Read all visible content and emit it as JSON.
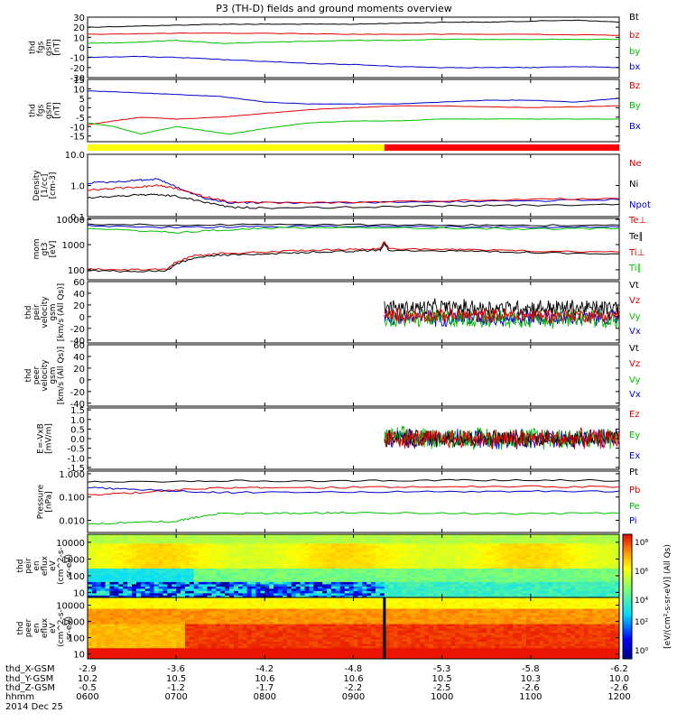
{
  "chart_data": {
    "type": "line",
    "title": "P3 (TH-D) fields and ground moments overview",
    "time": {
      "hours": [
        6,
        7,
        8,
        9,
        10,
        11,
        12
      ],
      "ticks": [
        "0600",
        "0700",
        "0800",
        "0900",
        "1000",
        "1100",
        "1200"
      ],
      "orbit_labels": [
        "thd_X-GSM",
        "thd_Y-GSM",
        "thd_Z-GSM",
        "hhmm",
        "2014 Dec 25"
      ],
      "x_gsm": [
        "-2.9",
        "-3.6",
        "-4.2",
        "-4.8",
        "-5.3",
        "-5.8",
        "-6.2"
      ],
      "y_gsm": [
        "10.2",
        "10.5",
        "10.6",
        "10.6",
        "10.5",
        "10.3",
        "10.0"
      ],
      "z_gsm": [
        "-0.5",
        "-1.2",
        "-1.7",
        "-2.2",
        "-2.5",
        "-2.6",
        "-2.6"
      ]
    },
    "mode_bar": {
      "switch_hour": 9.35,
      "colors": [
        "#ffff00",
        "#ff0000"
      ]
    },
    "panels": [
      {
        "id": "fgs",
        "ylabel": [
          "thd",
          "fgs",
          "gsm",
          "[nT]"
        ],
        "scale": "linear",
        "ylim": [
          -30,
          30
        ],
        "ticks": [
          "30",
          "20",
          "10",
          "0",
          "-10",
          "-20",
          "-30"
        ],
        "tick_values": [
          30,
          20,
          10,
          0,
          -10,
          -20,
          -30
        ],
        "legend": [
          {
            "name": "Bt",
            "color": "#000000"
          },
          {
            "name": "bz",
            "color": "#e00000"
          },
          {
            "name": "by",
            "color": "#00c000"
          },
          {
            "name": "bx",
            "color": "#0000cc"
          }
        ],
        "series": [
          {
            "color": "#000000",
            "x": [
              6,
              6.5,
              7,
              7.5,
              8,
              8.5,
              9,
              9.5,
              10,
              10.5,
              11,
              11.5,
              12
            ],
            "y": [
              20,
              21,
              22,
              23,
              23,
              23,
              23,
              24,
              25,
              25,
              26,
              27,
              25
            ]
          },
          {
            "color": "#e00000",
            "x": [
              6,
              7,
              8,
              9,
              10,
              11,
              12
            ],
            "y": [
              13,
              14,
              14,
              13,
              13,
              13,
              12
            ]
          },
          {
            "color": "#00c000",
            "x": [
              6,
              6.5,
              7,
              7.5,
              8,
              8.5,
              9,
              9.5,
              10,
              11,
              12
            ],
            "y": [
              4,
              5,
              7,
              4,
              5,
              6,
              7,
              7,
              8,
              8,
              8
            ]
          },
          {
            "color": "#0000cc",
            "x": [
              6,
              6.5,
              7,
              7.5,
              8,
              8.5,
              9,
              9.5,
              10,
              10.5,
              11,
              11.5,
              12
            ],
            "y": [
              -10,
              -9,
              -10,
              -12,
              -14,
              -16,
              -17,
              -19,
              -20,
              -20,
              -20,
              -19,
              -20
            ]
          }
        ]
      },
      {
        "id": "fgs_gsm",
        "ylabel": [
          "thd",
          "fgs",
          "gsm",
          "[nT]"
        ],
        "scale": "linear",
        "ylim": [
          -18,
          15
        ],
        "ticks": [
          "15",
          "10",
          "5",
          "0",
          "-5",
          "-10",
          "-15"
        ],
        "tick_values": [
          15,
          10,
          5,
          0,
          -5,
          -10,
          -15
        ],
        "legend": [
          {
            "name": "Bz",
            "color": "#e00000"
          },
          {
            "name": "By",
            "color": "#00c000"
          },
          {
            "name": "Bx",
            "color": "#0000cc"
          }
        ],
        "series": [
          {
            "color": "#0000cc",
            "x": [
              6,
              6.5,
              7,
              7.5,
              8,
              8.5,
              9,
              9.5,
              10,
              10.5,
              11,
              11.5,
              12
            ],
            "y": [
              9,
              8,
              7,
              6,
              3,
              2,
              2,
              2,
              3,
              4,
              4,
              3,
              5
            ]
          },
          {
            "color": "#e00000",
            "x": [
              6,
              6.3,
              6.6,
              7,
              7.5,
              8,
              8.5,
              9,
              9.5,
              10,
              11,
              12
            ],
            "y": [
              -9,
              -7,
              -5,
              -6,
              -5,
              -3,
              -1,
              0,
              1,
              1,
              0,
              1
            ]
          },
          {
            "color": "#00c000",
            "x": [
              6,
              6.3,
              6.6,
              7,
              7.3,
              7.6,
              8,
              8.5,
              9,
              9.5,
              10,
              11,
              12
            ],
            "y": [
              -8,
              -10,
              -14,
              -10,
              -12,
              -14,
              -11,
              -8,
              -7,
              -7,
              -6,
              -6,
              -6
            ]
          }
        ]
      },
      {
        "id": "density",
        "ylabel": [
          "Density",
          "[1/cc]",
          "[cm-3]"
        ],
        "scale": "log",
        "ylim": [
          0.1,
          10
        ],
        "ticks": [
          "10.0",
          "1.0",
          "0.1"
        ],
        "tick_values": [
          10,
          1,
          0.1
        ],
        "legend": [
          {
            "name": "Ne",
            "color": "#e00000"
          },
          {
            "name": "Ni",
            "color": "#000000"
          },
          {
            "name": "Npot",
            "color": "#0000cc"
          }
        ],
        "series": [
          {
            "color": "#0000cc",
            "x": [
              6,
              6.3,
              6.6,
              6.8,
              7,
              7.3,
              7.6,
              8,
              9,
              10,
              11,
              12
            ],
            "y": [
              1.2,
              1.3,
              1.5,
              1.6,
              0.9,
              0.4,
              0.28,
              0.28,
              0.28,
              0.3,
              0.32,
              0.35
            ]
          },
          {
            "color": "#e00000",
            "x": [
              6,
              6.3,
              6.6,
              6.8,
              7,
              7.3,
              7.6,
              8,
              9,
              10,
              11,
              12
            ],
            "y": [
              0.7,
              0.8,
              0.9,
              1.0,
              0.8,
              0.45,
              0.3,
              0.28,
              0.28,
              0.32,
              0.36,
              0.38
            ]
          },
          {
            "color": "#000000",
            "x": [
              6,
              6.3,
              6.6,
              6.8,
              7,
              7.3,
              7.6,
              8,
              9,
              10,
              11,
              12
            ],
            "y": [
              0.4,
              0.45,
              0.5,
              0.5,
              0.45,
              0.3,
              0.2,
              0.19,
              0.2,
              0.22,
              0.23,
              0.25
            ]
          }
        ]
      },
      {
        "id": "temp",
        "ylabel": [
          "mom",
          "gt3",
          "[eV]"
        ],
        "scale": "log",
        "ylim": [
          40,
          11000
        ],
        "ticks": [
          "10000",
          "1000",
          "100"
        ],
        "tick_values": [
          10000,
          1000,
          100
        ],
        "legend": [
          {
            "name": "Te⊥",
            "color": "#e00000"
          },
          {
            "name": "Te∥",
            "color": "#000000"
          },
          {
            "name": "Ti⊥",
            "color": "#e00000"
          },
          {
            "name": "Ti∥",
            "color": "#00c000"
          }
        ],
        "series": [
          {
            "color": "#0000cc",
            "x": [
              6,
              7,
              8,
              9,
              10,
              11,
              12
            ],
            "y": [
              5500,
              4800,
              5200,
              5300,
              5100,
              5000,
              5000
            ]
          },
          {
            "color": "#000000",
            "x": [
              6,
              7,
              8,
              9,
              10,
              11,
              12
            ],
            "y": [
              6500,
              6000,
              6200,
              6200,
              6000,
              5900,
              5900
            ]
          },
          {
            "color": "#00c000",
            "x": [
              6,
              6.5,
              7,
              7.5,
              8,
              9,
              10,
              11,
              12
            ],
            "y": [
              4500,
              3500,
              3000,
              3800,
              4500,
              5000,
              4500,
              4200,
              4400
            ]
          },
          {
            "color": "#e00000",
            "x": [
              6,
              6.5,
              6.9,
              7,
              7.2,
              7.5,
              8,
              8.5,
              9,
              9.3,
              9.35,
              9.4,
              10,
              10.5,
              11,
              12
            ],
            "y": [
              110,
              100,
              110,
              200,
              350,
              450,
              500,
              600,
              650,
              700,
              1300,
              700,
              650,
              600,
              560,
              500
            ]
          },
          {
            "color": "#000000",
            "x": [
              6,
              6.5,
              6.9,
              7,
              7.2,
              7.5,
              8,
              8.5,
              9,
              9.3,
              9.35,
              9.4,
              10,
              10.5,
              11,
              12
            ],
            "y": [
              95,
              85,
              95,
              170,
              300,
              380,
              420,
              500,
              550,
              600,
              1100,
              600,
              560,
              520,
              480,
              430
            ]
          }
        ]
      },
      {
        "id": "peir_vel",
        "ylabel": [
          "thd",
          "peir",
          "velocity",
          "gsm",
          "[km/s (All Qs)]"
        ],
        "scale": "linear",
        "ylim": [
          -45,
          60
        ],
        "ticks": [
          "60",
          "40",
          "20",
          "0",
          "-20",
          "-40"
        ],
        "tick_values": [
          60,
          40,
          20,
          0,
          -20,
          -40
        ],
        "legend": [
          {
            "name": "Vt",
            "color": "#000000"
          },
          {
            "name": "Vz",
            "color": "#e00000"
          },
          {
            "name": "Vy",
            "color": "#00c000"
          },
          {
            "name": "Vx",
            "color": "#0000cc"
          }
        ],
        "noise_start": 9.35,
        "noise": [
          {
            "color": "#0000cc",
            "center": -2,
            "amp": 14
          },
          {
            "color": "#00c000",
            "center": -3,
            "amp": 16
          },
          {
            "color": "#000000",
            "center": 15,
            "amp": 14
          },
          {
            "color": "#e00000",
            "center": 2,
            "amp": 12
          }
        ]
      },
      {
        "id": "peer_vel",
        "ylabel": [
          "thd",
          "peer",
          "velocity",
          "gsm",
          "[km/s (All Qs)]"
        ],
        "scale": "linear",
        "ylim": [
          -45,
          60
        ],
        "ticks": [
          "60",
          "40",
          "20",
          "0",
          "-20",
          "-40"
        ],
        "tick_values": [
          60,
          40,
          20,
          0,
          -20,
          -40
        ],
        "legend": [
          {
            "name": "Vt",
            "color": "#000000"
          },
          {
            "name": "Vz",
            "color": "#e00000"
          },
          {
            "name": "Vy",
            "color": "#00c000"
          },
          {
            "name": "Vx",
            "color": "#0000cc"
          }
        ]
      },
      {
        "id": "efield",
        "ylabel": [
          "E=-VxB",
          "[mV/m]"
        ],
        "scale": "linear",
        "ylim": [
          -1.6,
          1.6
        ],
        "ticks": [
          "1.5",
          "1.0",
          "0.5",
          "0.0",
          "-0.5",
          "-1.0",
          "-1.5"
        ],
        "tick_values": [
          1.5,
          1,
          0.5,
          0,
          -0.5,
          -1,
          -1.5
        ],
        "legend": [
          {
            "name": "Ez",
            "color": "#e00000"
          },
          {
            "name": "Ey",
            "color": "#00c000"
          },
          {
            "name": "Ex",
            "color": "#0000cc"
          }
        ],
        "noise_start": 9.35,
        "noise": [
          {
            "color": "#0000cc",
            "center": 0,
            "amp": 0.5
          },
          {
            "color": "#00c000",
            "center": 0.05,
            "amp": 0.55
          },
          {
            "color": "#000000",
            "center": 0,
            "amp": 0.45
          },
          {
            "color": "#e00000",
            "center": 0,
            "amp": 0.5
          }
        ]
      },
      {
        "id": "pressure",
        "ylabel": [
          "Pressure",
          "[nPa]"
        ],
        "scale": "log",
        "ylim": [
          0.003,
          1.3
        ],
        "ticks": [
          "1.000",
          "0.100",
          "0.010"
        ],
        "tick_values": [
          1,
          0.1,
          0.01
        ],
        "legend": [
          {
            "name": "Pt",
            "color": "#000000"
          },
          {
            "name": "Pb",
            "color": "#e00000"
          },
          {
            "name": "Pe",
            "color": "#00c000"
          },
          {
            "name": "Pi",
            "color": "#0000cc"
          }
        ],
        "series": [
          {
            "color": "#000000",
            "x": [
              6,
              7,
              8,
              9,
              10,
              11,
              12
            ],
            "y": [
              0.45,
              0.48,
              0.5,
              0.5,
              0.52,
              0.55,
              0.5
            ]
          },
          {
            "color": "#e00000",
            "x": [
              6,
              6.5,
              7,
              7.5,
              8,
              9,
              10,
              11,
              12
            ],
            "y": [
              0.12,
              0.15,
              0.2,
              0.25,
              0.25,
              0.26,
              0.27,
              0.28,
              0.27
            ]
          },
          {
            "color": "#0000cc",
            "x": [
              6,
              6.5,
              7,
              7.5,
              8,
              9,
              10,
              11,
              12
            ],
            "y": [
              0.25,
              0.22,
              0.18,
              0.16,
              0.16,
              0.17,
              0.17,
              0.18,
              0.18
            ]
          },
          {
            "color": "#00c000",
            "x": [
              6,
              6.5,
              7,
              7.2,
              7.5,
              8,
              8.5,
              9,
              10,
              11,
              12
            ],
            "y": [
              0.007,
              0.008,
              0.009,
              0.013,
              0.02,
              0.02,
              0.02,
              0.022,
              0.02,
              0.019,
              0.02
            ]
          }
        ]
      },
      {
        "id": "peir_spec",
        "type": "heatmap",
        "ylabel": [
          "thd",
          "peir",
          "en",
          "eflux",
          "eV",
          "(cm^2-s-",
          "sr-eV)"
        ],
        "scale": "log",
        "ylim": [
          5,
          30000
        ],
        "ticks": [
          "10000",
          "1000",
          "100",
          "10"
        ],
        "tick_values": [
          10000,
          1000,
          100,
          10
        ]
      },
      {
        "id": "peer_spec",
        "type": "heatmap",
        "ylabel": [
          "thd",
          "peer",
          "en",
          "eflux",
          "eV",
          "(cm^2-s-",
          "sr-eV)"
        ],
        "scale": "log",
        "ylim": [
          5,
          30000
        ],
        "ticks": [
          "10000",
          "1000",
          "100",
          "10"
        ],
        "tick_values": [
          10000,
          1000,
          100,
          10
        ]
      }
    ],
    "colorbar": {
      "ticks": [
        "10⁸",
        "10⁶",
        "10⁴",
        "10²",
        "10⁰"
      ],
      "label": "[eV/(cm²-s-sr-eV)] (All Qs)"
    }
  }
}
